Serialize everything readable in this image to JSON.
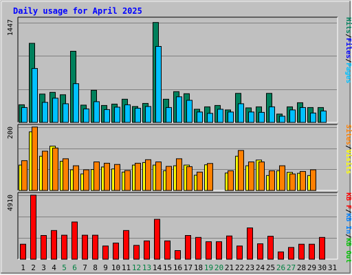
{
  "title": "Daily usage for April 2025",
  "colors": {
    "hits": "#00805c",
    "files": "#00c0ff",
    "visits": "#ffff00",
    "sites": "#ff8000",
    "kbin": "#0080ff",
    "kbout": "#00c000",
    "kbf": "#ff0000",
    "title": "#0000ff",
    "frame": "#c0c0c0",
    "weekend": "#008040"
  },
  "chart_data": [
    {
      "type": "bar",
      "panel": "hits-files",
      "categories": [
        "1",
        "2",
        "3",
        "4",
        "5",
        "6",
        "7",
        "8",
        "9",
        "10",
        "11",
        "12",
        "13",
        "14",
        "15",
        "16",
        "17",
        "18",
        "19",
        "20",
        "21",
        "22",
        "23",
        "24",
        "25",
        "26",
        "27",
        "28",
        "29",
        "30",
        "31"
      ],
      "ymax_label": "1447",
      "ylim": [
        0,
        1447
      ],
      "right_labels": [
        {
          "text": "Hits",
          "color": "#00805c"
        },
        {
          "text": "/",
          "color": "#000000"
        },
        {
          "text": "Files",
          "color": "#0000ff"
        },
        {
          "text": "/",
          "color": "#000000"
        },
        {
          "text": "Pages",
          "color": "#00c0ff"
        }
      ],
      "series": [
        {
          "name": "Hits",
          "color": "#00805c",
          "values": [
            255,
            1145,
            410,
            435,
            400,
            1030,
            250,
            465,
            245,
            265,
            335,
            230,
            275,
            1447,
            335,
            445,
            415,
            190,
            225,
            245,
            180,
            420,
            210,
            225,
            420,
            120,
            225,
            285,
            215,
            215,
            0
          ]
        },
        {
          "name": "Files",
          "color": "#00c0ff",
          "values": [
            215,
            780,
            290,
            350,
            270,
            560,
            195,
            300,
            185,
            220,
            255,
            205,
            230,
            1100,
            215,
            370,
            320,
            150,
            130,
            190,
            150,
            270,
            150,
            145,
            225,
            90,
            180,
            215,
            135,
            165,
            0
          ]
        }
      ]
    },
    {
      "type": "bar",
      "panel": "visits-sites",
      "categories": [
        "1",
        "2",
        "3",
        "4",
        "5",
        "6",
        "7",
        "8",
        "9",
        "10",
        "11",
        "12",
        "13",
        "14",
        "15",
        "16",
        "17",
        "18",
        "19",
        "20",
        "21",
        "22",
        "23",
        "24",
        "25",
        "26",
        "27",
        "28",
        "29",
        "30",
        "31"
      ],
      "ymax_label": "200",
      "ylim": [
        0,
        200
      ],
      "right_labels": [
        {
          "text": "Sites",
          "color": "#ff8000"
        },
        {
          "text": "/",
          "color": "#000000"
        },
        {
          "text": "Visits",
          "color": "#ffff00"
        }
      ],
      "series": [
        {
          "name": "Visits",
          "color": "#ffff00",
          "values": [
            80,
            185,
            108,
            140,
            92,
            65,
            52,
            66,
            74,
            68,
            58,
            80,
            88,
            80,
            62,
            78,
            80,
            48,
            81,
            0,
            55,
            108,
            78,
            96,
            47,
            62,
            57,
            54,
            47,
            0,
            0
          ]
        },
        {
          "name": "Sites",
          "color": "#ff8000",
          "values": [
            94,
            200,
            124,
            134,
            100,
            78,
            65,
            90,
            86,
            82,
            63,
            86,
            97,
            90,
            76,
            100,
            75,
            58,
            85,
            0,
            62,
            126,
            90,
            90,
            62,
            78,
            52,
            60,
            65,
            0,
            0
          ]
        }
      ]
    },
    {
      "type": "bar",
      "panel": "kbytes",
      "categories": [
        "1",
        "2",
        "3",
        "4",
        "5",
        "6",
        "7",
        "8",
        "9",
        "10",
        "11",
        "12",
        "13",
        "14",
        "15",
        "16",
        "17",
        "18",
        "19",
        "20",
        "21",
        "22",
        "23",
        "24",
        "25",
        "26",
        "27",
        "28",
        "29",
        "30",
        "31"
      ],
      "ymax_label": "4910",
      "ylim": [
        0,
        4910
      ],
      "right_labels": [
        {
          "text": "KB F",
          "color": "#ff0000"
        },
        {
          "text": "/",
          "color": "#000000"
        },
        {
          "text": "KB In",
          "color": "#0080ff"
        },
        {
          "text": "/",
          "color": "#000000"
        },
        {
          "text": "KB Out",
          "color": "#00c000"
        }
      ],
      "series": [
        {
          "name": "KB F",
          "color": "#ff0000",
          "values": [
            1150,
            4910,
            1820,
            2200,
            1840,
            2850,
            1840,
            1840,
            1010,
            1240,
            2200,
            1060,
            1400,
            3060,
            1400,
            660,
            1820,
            1670,
            1340,
            1340,
            1780,
            1010,
            2400,
            1180,
            1760,
            560,
            900,
            1150,
            1150,
            1670,
            0
          ]
        }
      ]
    }
  ],
  "weekend_days": [
    "5",
    "6",
    "12",
    "13",
    "19",
    "20",
    "26",
    "27"
  ]
}
